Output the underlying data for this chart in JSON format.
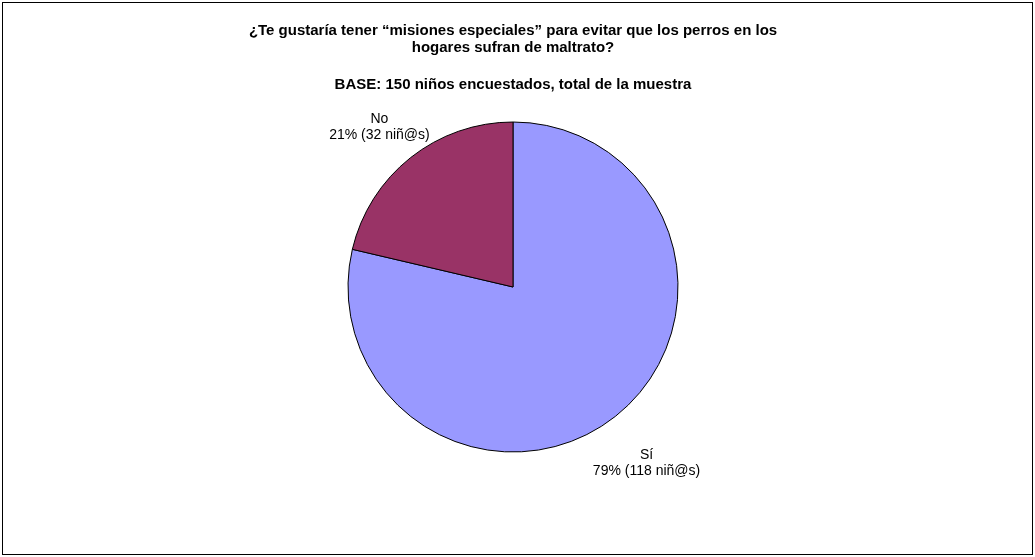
{
  "chart_data": {
    "type": "pie",
    "title": "¿Te gustaría tener “misiones especiales” para evitar que los perros en los hogares sufran de maltrato?",
    "subtitle": "BASE: 150 niños encuestados, total de la muestra",
    "categories": [
      "Sí",
      "No"
    ],
    "values": [
      118,
      32
    ],
    "value_labels": [
      "79% (118 niñ@s)",
      "21% (32 niñ@s)"
    ],
    "colors": [
      "#9999ff",
      "#993366"
    ],
    "legend": false
  }
}
